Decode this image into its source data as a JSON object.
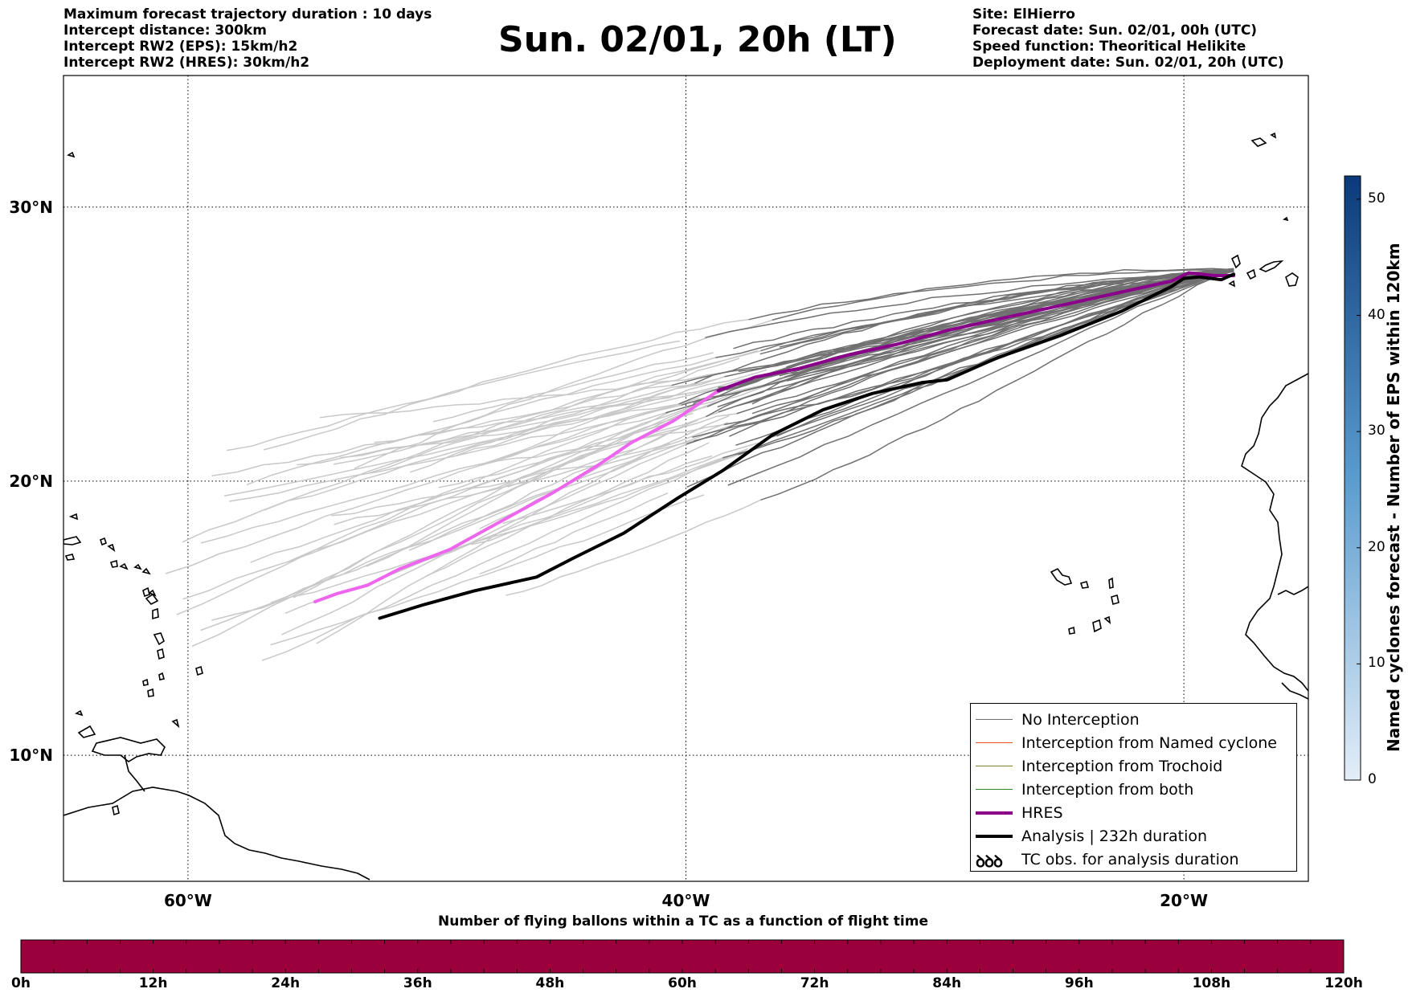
{
  "header": {
    "left": [
      "Maximum forecast trajectory duration : 10 days",
      "Intercept distance: 300km",
      "Intercept RW2 (EPS):  15km/h2",
      "Intercept RW2 (HRES): 30km/h2"
    ],
    "title": "Sun. 02/01, 20h (LT)",
    "right": [
      "Site: ElHierro",
      "Forecast date: Sun. 02/01, 00h (UTC)",
      "Speed function: Theoritical Helikite",
      "Deployment date: Sun. 02/01, 20h (UTC)"
    ]
  },
  "map": {
    "lon_range": [
      -65,
      -15
    ],
    "lat_range": [
      5.4,
      34.8
    ],
    "lat_labels": [
      "30°N",
      "20°N",
      "10°N"
    ],
    "lat_values": [
      30,
      20,
      10
    ],
    "lon_labels": [
      "60°W",
      "40°W",
      "20°W"
    ],
    "lon_values": [
      -60,
      -40,
      -20
    ],
    "site": {
      "name": "ElHierro",
      "lon": -18.0,
      "lat": 27.7
    },
    "colors": {
      "no_interception": "#707070",
      "ensemble_light": "#c8c8c8",
      "hres": "#8b008b",
      "hres_early": "#ee66ee",
      "analysis": "#000000"
    },
    "hres_track": [
      [
        -54.9,
        15.6
      ],
      [
        -54.0,
        15.9
      ],
      [
        -52.8,
        16.2
      ],
      [
        -51.5,
        16.8
      ],
      [
        -49.5,
        17.5
      ],
      [
        -47.5,
        18.5
      ],
      [
        -45.3,
        19.6
      ],
      [
        -43.5,
        20.6
      ],
      [
        -42.2,
        21.4
      ],
      [
        -40.5,
        22.2
      ],
      [
        -38.7,
        23.3
      ],
      [
        -37.2,
        23.8
      ],
      [
        -35.5,
        24.1
      ],
      [
        -33.5,
        24.6
      ],
      [
        -31.5,
        25.0
      ],
      [
        -29.5,
        25.5
      ],
      [
        -27.0,
        26.0
      ],
      [
        -24.5,
        26.5
      ],
      [
        -22.5,
        26.9
      ],
      [
        -20.5,
        27.3
      ],
      [
        -19.8,
        27.6
      ],
      [
        -18.8,
        27.5
      ],
      [
        -18.0,
        27.5
      ]
    ],
    "hres_split_lon": -38.5,
    "analysis_track": [
      [
        -52.3,
        15.0
      ],
      [
        -50.5,
        15.5
      ],
      [
        -48.5,
        16.0
      ],
      [
        -46.0,
        16.5
      ],
      [
        -44.5,
        17.2
      ],
      [
        -42.5,
        18.1
      ],
      [
        -40.3,
        19.4
      ],
      [
        -38.5,
        20.4
      ],
      [
        -36.5,
        21.7
      ],
      [
        -34.5,
        22.6
      ],
      [
        -32.5,
        23.2
      ],
      [
        -30.5,
        23.6
      ],
      [
        -29.5,
        23.7
      ],
      [
        -27.5,
        24.5
      ],
      [
        -25.0,
        25.3
      ],
      [
        -22.5,
        26.2
      ],
      [
        -20.5,
        27.1
      ],
      [
        -20.0,
        27.4
      ],
      [
        -19.4,
        27.45
      ],
      [
        -18.5,
        27.35
      ],
      [
        -18.0,
        27.55
      ]
    ]
  },
  "legend": {
    "items": [
      {
        "label": "No Interception",
        "color": "#707070",
        "width": 1.5,
        "kind": "line"
      },
      {
        "label": "Interception from Named cyclone",
        "color": "#e8541c",
        "width": 1.5,
        "kind": "line"
      },
      {
        "label": "Interception from Trochoid",
        "color": "#808020",
        "width": 1.5,
        "kind": "line"
      },
      {
        "label": "Interception from both",
        "color": "#2a8a2a",
        "width": 1.5,
        "kind": "line"
      },
      {
        "label": "HRES",
        "color": "#8b008b",
        "width": 4,
        "kind": "line"
      },
      {
        "label": "Analysis | 232h duration",
        "color": "#000000",
        "width": 4,
        "kind": "line"
      },
      {
        "label": "TC obs. for analysis duration",
        "color": "#000000",
        "width": 0,
        "kind": "symbol",
        "symbol": "ꝺꝺꝺ"
      }
    ]
  },
  "colorbar_eps": {
    "label": "Named cyclones forecast - Number of EPS within 120km",
    "ticks": [
      "0",
      "10",
      "20",
      "30",
      "40",
      "50"
    ],
    "tick_values": [
      0,
      10,
      20,
      30,
      40,
      50
    ],
    "max": 52,
    "color_low": "#e3eef8",
    "color_high": "#0a3a7a"
  },
  "flight_time_bar": {
    "title": "Number of flying ballons within a TC as a function of flight time",
    "ticks": [
      "0h",
      "12h",
      "24h",
      "36h",
      "48h",
      "60h",
      "72h",
      "84h",
      "96h",
      "108h",
      "120h"
    ],
    "color": "#9b003c"
  }
}
